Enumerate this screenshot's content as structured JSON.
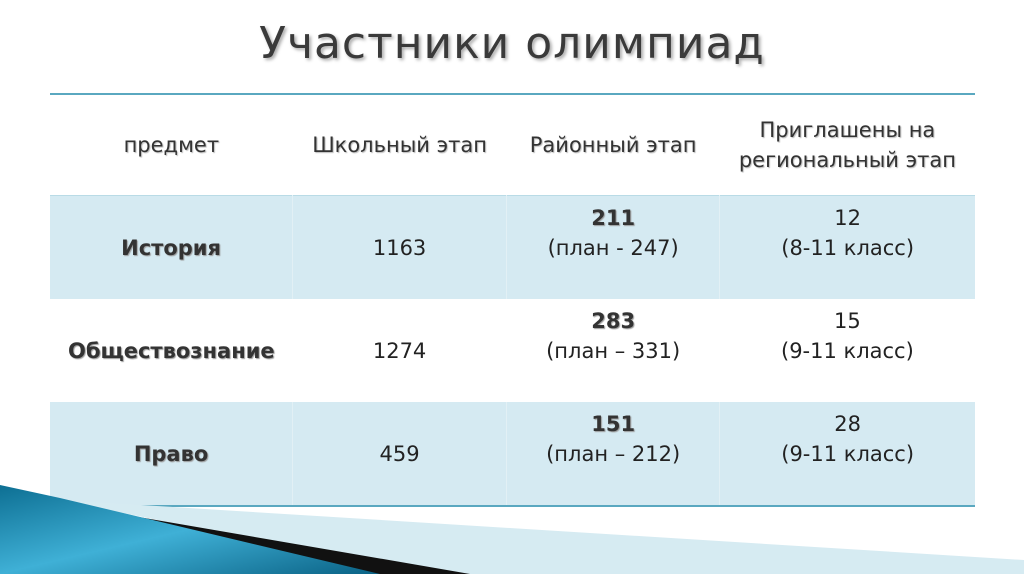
{
  "title": "Участники олимпиад",
  "table": {
    "headers": [
      "предмет",
      "Школьный этап",
      "Районный этап",
      "Приглашены на региональный этап"
    ],
    "rows": [
      {
        "subject": "История",
        "school": "1163",
        "district": "211",
        "district_plan": "(план - 247)",
        "regional": "12",
        "regional_classes": "(8-11 класс)"
      },
      {
        "subject": "Обществознание",
        "school": "1274",
        "district": "283",
        "district_plan": "(план – 331)",
        "regional": "15",
        "regional_classes": "(9-11 класс)"
      },
      {
        "subject": "Право",
        "school": "459",
        "district": "151",
        "district_plan": "(план – 212)",
        "regional": "28",
        "regional_classes": "(9-11 класс)"
      }
    ]
  },
  "colors": {
    "accent": "#5aa8c0",
    "row_fill": "#d5eaf2",
    "wave": "#1a7fa3"
  }
}
